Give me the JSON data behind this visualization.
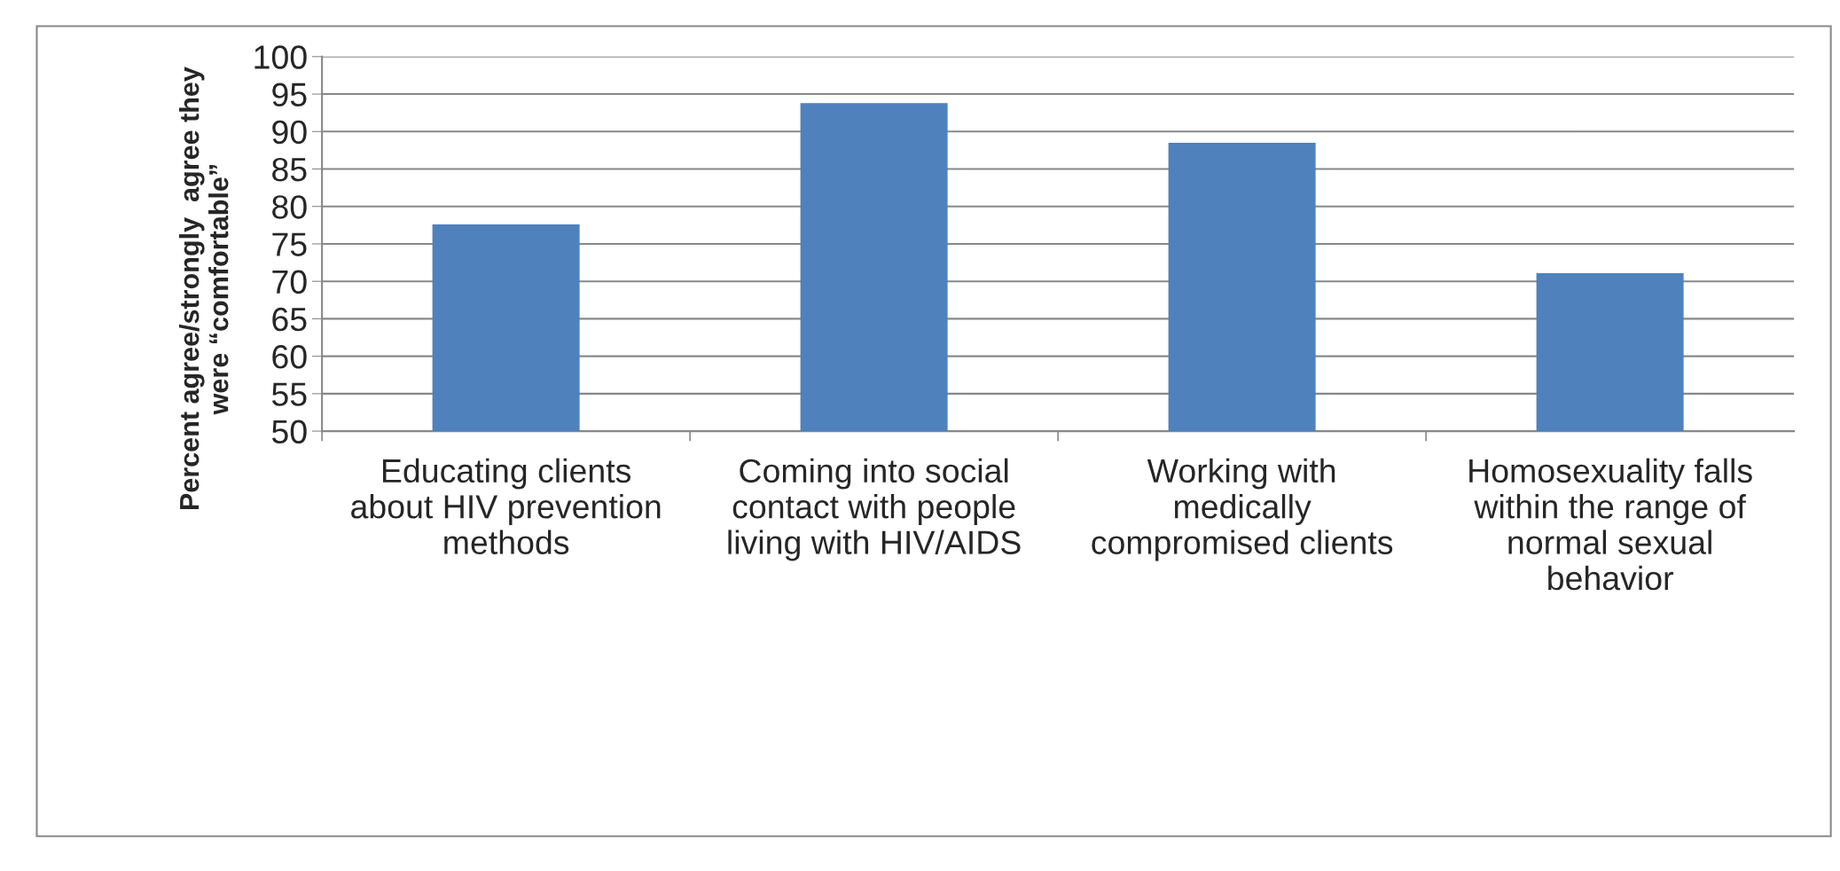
{
  "chart_data": {
    "type": "bar",
    "ylabel": "Percent agree/strongly  agree they\nwere “comfortable”",
    "categories": [
      "Educating clients\nabout HIV prevention\nmethods",
      "Coming into social\ncontact with people\nliving with HIV/AIDS",
      "Working with\nmedically\ncompromised clients",
      "Homosexuality falls\nwithin the range of\nnormal sexual\nbehavior"
    ],
    "values": [
      77.6,
      93.8,
      88.5,
      71.1
    ],
    "color": "#4f81bd",
    "ylim": [
      50,
      100
    ],
    "yticks": [
      50,
      55,
      60,
      65,
      70,
      75,
      80,
      85,
      90,
      95,
      100
    ],
    "grid": "y",
    "legend": false
  }
}
